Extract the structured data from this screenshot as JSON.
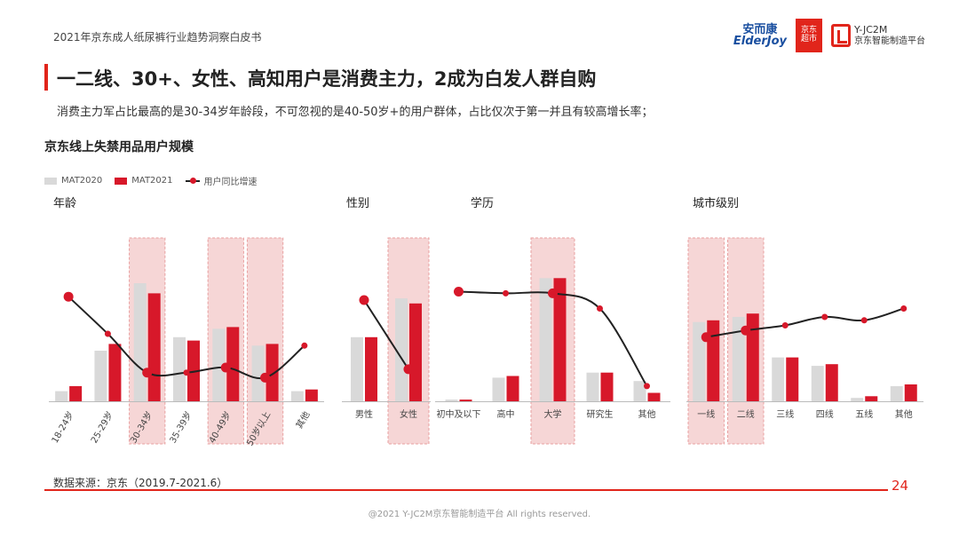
{
  "report_title": "2021年京东成人纸尿裤行业趋势洞察白皮书",
  "logos": {
    "anerkang_cn": "安而康",
    "anerkang_en": "ElderJoy",
    "jd_line1": "京东",
    "jd_line2": "超市",
    "yjc_line1": "Y-JC2M",
    "yjc_line2": "京东智能制造平台"
  },
  "headline": "一二线、30+、女性、高知用户是消费主力，2成为白发人群自购",
  "subline": "消费主力军占比最高的是30-34岁年龄段，不可忽视的是40-50岁+的用户群体，占比仅次于第一并且有较高增长率；",
  "chart_title": "京东线上失禁用品用户规模",
  "legend": {
    "s1": "MAT2020",
    "s2": "MAT2021",
    "s3": "用户同比增速"
  },
  "colors": {
    "mat2020": "#d9d9d9",
    "mat2021": "#d7182a",
    "highlight": "#f6d6d6",
    "line": "#222222",
    "accent": "#e1251b"
  },
  "chart_data": [
    {
      "type": "bar",
      "title": "年龄",
      "categories": [
        "18-24岁",
        "25-29岁",
        "30-34岁",
        "35-39岁",
        "40-49岁",
        "50岁以上",
        "其他"
      ],
      "series": [
        {
          "name": "MAT2020",
          "values": [
            6,
            30,
            70,
            38,
            43,
            33,
            6
          ]
        },
        {
          "name": "MAT2021",
          "values": [
            9,
            34,
            64,
            36,
            44,
            34,
            7
          ]
        },
        {
          "name": "用户同比增速",
          "type": "line",
          "values": [
            62,
            40,
            17,
            17,
            20,
            14,
            33
          ]
        }
      ],
      "highlight": [
        2,
        4,
        5
      ],
      "ylim": [
        0,
        100
      ]
    },
    {
      "type": "bar",
      "title": "性别",
      "categories": [
        "男性",
        "女性"
      ],
      "series": [
        {
          "name": "MAT2020",
          "values": [
            38,
            61
          ]
        },
        {
          "name": "MAT2021",
          "values": [
            38,
            58
          ]
        },
        {
          "name": "用户同比增速",
          "type": "line",
          "values": [
            60,
            19
          ]
        }
      ],
      "highlight": [
        1
      ],
      "ylim": [
        0,
        100
      ]
    },
    {
      "type": "bar",
      "title": "学历",
      "categories": [
        "初中及以下",
        "高中",
        "大学",
        "研究生",
        "其他"
      ],
      "series": [
        {
          "name": "MAT2020",
          "values": [
            1,
            14,
            73,
            17,
            12
          ]
        },
        {
          "name": "MAT2021",
          "values": [
            1,
            15,
            73,
            17,
            5
          ]
        },
        {
          "name": "用户同比增速",
          "type": "line",
          "values": [
            65,
            64,
            64,
            55,
            9
          ]
        }
      ],
      "highlight": [
        2
      ],
      "ylim": [
        0,
        100
      ]
    },
    {
      "type": "bar",
      "title": "城市级别",
      "categories": [
        "一线",
        "二线",
        "三线",
        "四线",
        "五线",
        "其他"
      ],
      "series": [
        {
          "name": "MAT2020",
          "values": [
            47,
            50,
            26,
            21,
            2,
            9
          ]
        },
        {
          "name": "MAT2021",
          "values": [
            48,
            52,
            26,
            22,
            3,
            10
          ]
        },
        {
          "name": "用户同比增速",
          "type": "line",
          "values": [
            38,
            42,
            45,
            50,
            48,
            55
          ]
        }
      ],
      "highlight": [
        0,
        1
      ],
      "ylim": [
        0,
        100
      ]
    }
  ],
  "source": "数据来源：京东（2019.7-2021.6）",
  "page_number": "24",
  "copyright": "@2021 Y-JC2M京东智能制造平台  All rights reserved."
}
